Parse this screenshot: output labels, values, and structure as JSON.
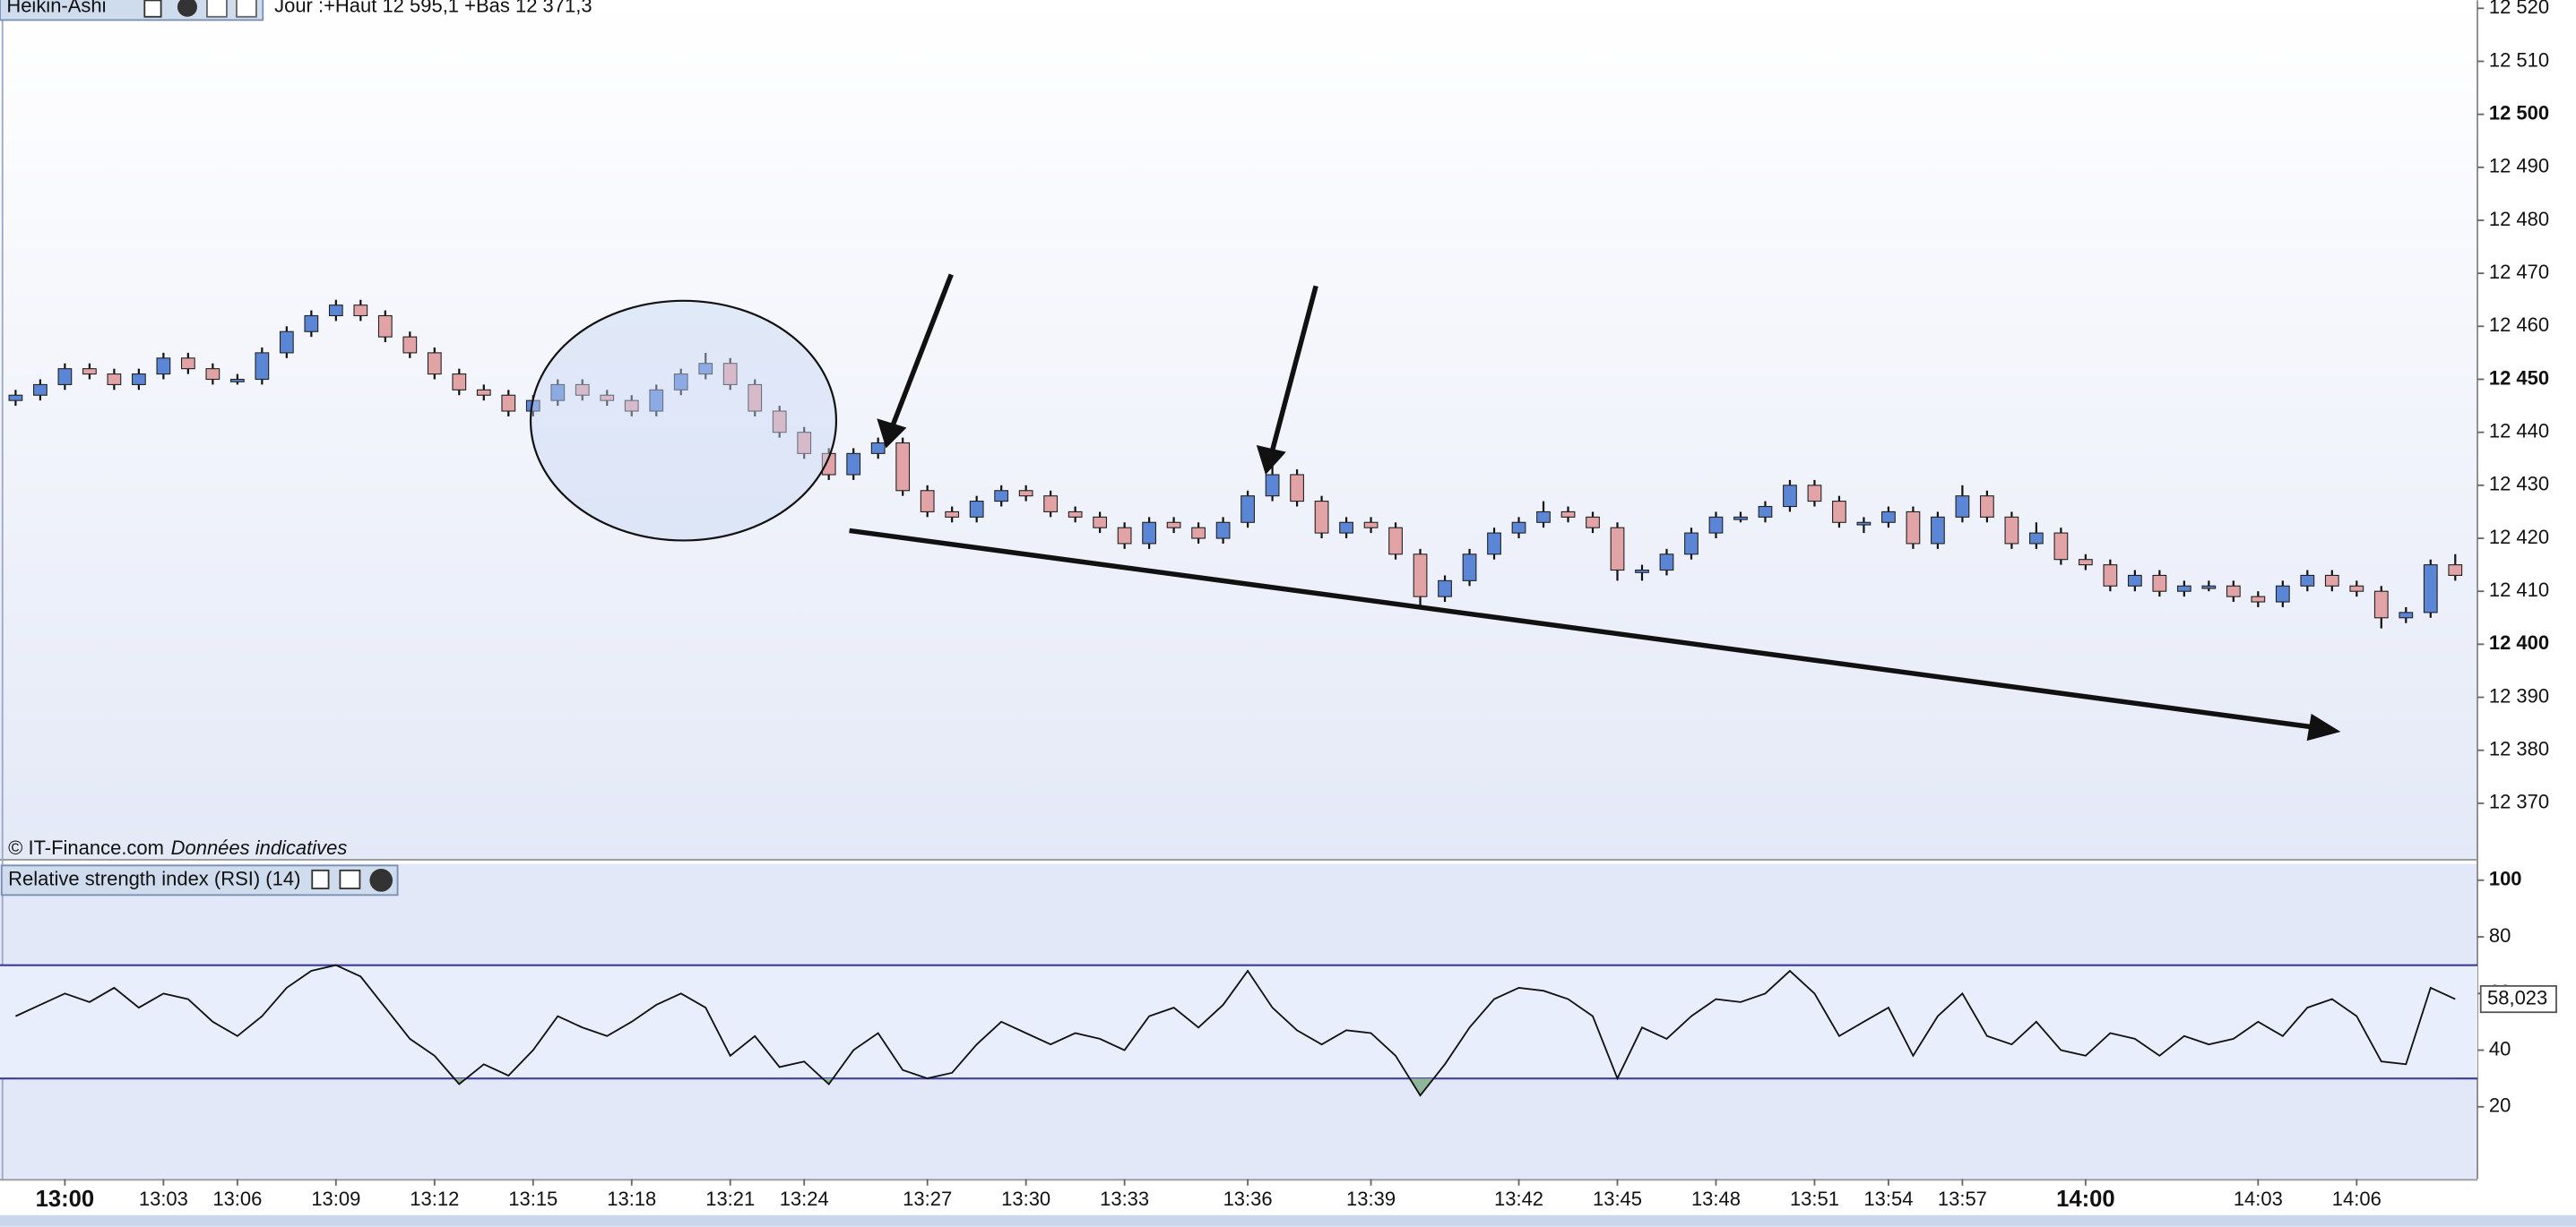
{
  "chart_data": [
    {
      "type": "candlestick",
      "title": "Heikin-Ashi",
      "subtitle": "Jour :+Haut 12 595,1 +Bas 12 371,3",
      "source": "© IT-Finance.com",
      "note": "Données indicatives",
      "up_color": "#5b86d6",
      "down_color": "#e2a3a6",
      "open": [
        12446,
        12447,
        12449,
        12452,
        12451,
        12449,
        12451,
        12454,
        12452,
        12450,
        12450,
        12455,
        12459,
        12462,
        12464,
        12462,
        12458,
        12455,
        12451,
        12448,
        12447,
        12444,
        12446,
        12449,
        12447,
        12446,
        12444,
        12448,
        12451,
        12453,
        12449,
        12444,
        12440,
        12436,
        12432,
        12436,
        12438,
        12429,
        12425,
        12424,
        12427,
        12429,
        12428,
        12425,
        12424,
        12422,
        12419,
        12423,
        12422,
        12420,
        12423,
        12428,
        12432,
        12427,
        12421,
        12423,
        12422,
        12417,
        12409,
        12412,
        12417,
        12421,
        12423,
        12425,
        12424,
        12422,
        12414,
        12414,
        12417,
        12421,
        12424,
        12424,
        12426,
        12430,
        12427,
        12423,
        12423,
        12425,
        12419,
        12424,
        12428,
        12424,
        12419,
        12421,
        12416,
        12415,
        12411,
        12413,
        12410,
        12411,
        12411,
        12409,
        12408,
        12411,
        12413,
        12411,
        12410,
        12405,
        12406,
        12415
      ],
      "high": [
        12448,
        12450,
        12453,
        12453,
        12452,
        12452,
        12455,
        12455,
        12453,
        12451,
        12456,
        12460,
        12463,
        12465,
        12465,
        12463,
        12459,
        12456,
        12452,
        12449,
        12448,
        12447,
        12450,
        12450,
        12448,
        12447,
        12449,
        12452,
        12455,
        12454,
        12450,
        12445,
        12441,
        12437,
        12437,
        12439,
        12439,
        12430,
        12426,
        12428,
        12430,
        12430,
        12429,
        12426,
        12425,
        12423,
        12424,
        12424,
        12423,
        12424,
        12429,
        12434,
        12433,
        12428,
        12424,
        12424,
        12423,
        12418,
        12413,
        12418,
        12422,
        12424,
        12427,
        12426,
        12425,
        12423,
        12415,
        12418,
        12422,
        12425,
        12425,
        12427,
        12431,
        12431,
        12428,
        12424,
        12426,
        12426,
        12425,
        12430,
        12429,
        12425,
        12423,
        12422,
        12417,
        12416,
        12414,
        12414,
        12412,
        12412,
        12412,
        12410,
        12412,
        12414,
        12414,
        12412,
        12411,
        12407,
        12416,
        12417
      ],
      "low": [
        12445,
        12446,
        12448,
        12450,
        12448,
        12448,
        12450,
        12451,
        12449,
        12449,
        12449,
        12454,
        12458,
        12461,
        12461,
        12457,
        12454,
        12450,
        12447,
        12446,
        12443,
        12443,
        12445,
        12446,
        12445,
        12443,
        12443,
        12447,
        12450,
        12448,
        12443,
        12439,
        12435,
        12431,
        12431,
        12435,
        12428,
        12424,
        12423,
        12423,
        12426,
        12427,
        12424,
        12423,
        12421,
        12418,
        12418,
        12421,
        12419,
        12419,
        12422,
        12427,
        12426,
        12420,
        12420,
        12421,
        12416,
        12407,
        12408,
        12411,
        12416,
        12420,
        12422,
        12423,
        12421,
        12412,
        12412,
        12413,
        12416,
        12420,
        12423,
        12423,
        12425,
        12426,
        12422,
        12421,
        12422,
        12418,
        12418,
        12423,
        12423,
        12418,
        12418,
        12415,
        12414,
        12410,
        12410,
        12409,
        12409,
        12410,
        12408,
        12407,
        12407,
        12410,
        12410,
        12409,
        12403,
        12404,
        12405,
        12412
      ],
      "close": [
        12447,
        12449,
        12452,
        12451,
        12449,
        12451,
        12454,
        12452,
        12450,
        12450,
        12455,
        12459,
        12462,
        12464,
        12462,
        12458,
        12455,
        12451,
        12448,
        12447,
        12444,
        12446,
        12449,
        12447,
        12446,
        12444,
        12448,
        12451,
        12453,
        12449,
        12444,
        12440,
        12436,
        12432,
        12436,
        12438,
        12429,
        12425,
        12424,
        12427,
        12429,
        12428,
        12425,
        12424,
        12422,
        12419,
        12423,
        12422,
        12420,
        12423,
        12428,
        12432,
        12427,
        12421,
        12423,
        12422,
        12417,
        12409,
        12412,
        12417,
        12421,
        12423,
        12425,
        12424,
        12422,
        12414,
        12414,
        12417,
        12421,
        12424,
        12424,
        12426,
        12430,
        12427,
        12423,
        12423,
        12425,
        12419,
        12424,
        12428,
        12424,
        12419,
        12421,
        12416,
        12415,
        12411,
        12413,
        12410,
        12411,
        12411,
        12409,
        12408,
        12411,
        12413,
        12411,
        12410,
        12405,
        12406,
        12415,
        12413
      ],
      "ylim": [
        12359.5,
        12521.5
      ],
      "yticks": [
        {
          "value": 12370,
          "label": "12 370"
        },
        {
          "value": 12380,
          "label": "12 380"
        },
        {
          "value": 12390,
          "label": "12 390"
        },
        {
          "value": 12400,
          "label": "12 400"
        },
        {
          "value": 12410,
          "label": "12 410"
        },
        {
          "value": 12420,
          "label": "12 420"
        },
        {
          "value": 12430,
          "label": "12 430"
        },
        {
          "value": 12440,
          "label": "12 440"
        },
        {
          "value": 12450,
          "label": "12 450"
        },
        {
          "value": 12460,
          "label": "12 460"
        },
        {
          "value": 12470,
          "label": "12 470"
        },
        {
          "value": 12480,
          "label": "12 480"
        },
        {
          "value": 12490,
          "label": "12 490"
        },
        {
          "value": 12500,
          "label": "12 500"
        },
        {
          "value": 12510,
          "label": "12 510"
        },
        {
          "value": 12520,
          "label": "12 520"
        }
      ]
    },
    {
      "type": "line",
      "title": "Relative strength index (RSI) (14)",
      "color": "#111111",
      "categories": [
        null,
        null,
        "13:00",
        null,
        null,
        null,
        "13:03",
        null,
        null,
        "13:06",
        null,
        null,
        null,
        "13:09",
        null,
        null,
        null,
        "13:12",
        null,
        null,
        null,
        "13:15",
        null,
        null,
        null,
        "13:18",
        null,
        null,
        null,
        "13:21",
        null,
        null,
        "13:24",
        null,
        null,
        null,
        null,
        "13:27",
        null,
        null,
        null,
        "13:30",
        null,
        null,
        null,
        "13:33",
        null,
        null,
        null,
        null,
        "13:36",
        null,
        null,
        null,
        null,
        "13:39",
        null,
        null,
        null,
        null,
        null,
        "13:42",
        null,
        null,
        null,
        "13:45",
        null,
        null,
        null,
        "13:48",
        null,
        null,
        null,
        "13:51",
        null,
        null,
        "13:54",
        null,
        null,
        "13:57",
        null,
        null,
        null,
        null,
        "14:00",
        null,
        null,
        null,
        null,
        null,
        null,
        "14:03",
        null,
        null,
        null,
        "14:06",
        null,
        null,
        null,
        null
      ],
      "values": [
        52,
        56,
        60,
        57,
        62,
        55,
        60,
        58,
        50,
        45,
        52,
        62,
        68,
        70,
        66,
        55,
        44,
        38,
        28,
        35,
        31,
        40,
        52,
        48,
        45,
        50,
        56,
        60,
        55,
        38,
        45,
        34,
        36,
        28,
        40,
        46,
        33,
        30,
        32,
        42,
        50,
        46,
        42,
        46,
        44,
        40,
        52,
        55,
        48,
        56,
        68,
        55,
        47,
        42,
        47,
        46,
        38,
        24,
        35,
        48,
        58,
        62,
        61,
        58,
        52,
        30,
        48,
        44,
        52,
        58,
        57,
        60,
        68,
        60,
        45,
        50,
        55,
        38,
        52,
        60,
        45,
        42,
        50,
        40,
        38,
        46,
        44,
        38,
        45,
        42,
        44,
        50,
        45,
        55,
        58,
        52,
        36,
        35,
        62,
        58.023
      ],
      "current": {
        "value": 58.023,
        "label": "58,023"
      },
      "levels": [
        70,
        30
      ],
      "level_color": "#3a3a9a",
      "oversold_fill": "#8fb59a",
      "ylim": [
        -5.5,
        105.2
      ],
      "yticks": [
        20,
        40,
        60,
        80,
        100
      ]
    }
  ]
}
